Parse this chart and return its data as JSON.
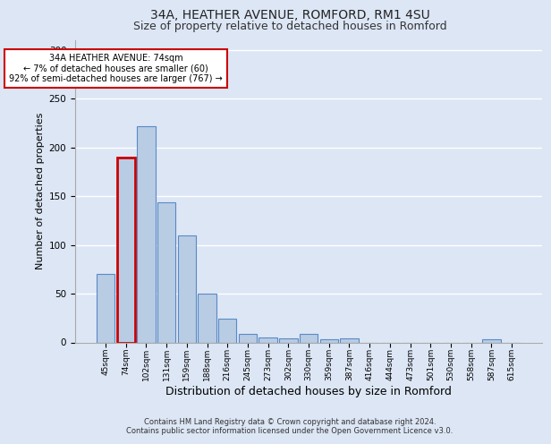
{
  "title1": "34A, HEATHER AVENUE, ROMFORD, RM1 4SU",
  "title2": "Size of property relative to detached houses in Romford",
  "xlabel": "Distribution of detached houses by size in Romford",
  "ylabel": "Number of detached properties",
  "categories": [
    "45sqm",
    "74sqm",
    "102sqm",
    "131sqm",
    "159sqm",
    "188sqm",
    "216sqm",
    "245sqm",
    "273sqm",
    "302sqm",
    "330sqm",
    "359sqm",
    "387sqm",
    "416sqm",
    "444sqm",
    "473sqm",
    "501sqm",
    "530sqm",
    "558sqm",
    "587sqm",
    "615sqm"
  ],
  "values": [
    70,
    190,
    222,
    144,
    110,
    50,
    24,
    9,
    5,
    4,
    9,
    3,
    4,
    0,
    0,
    0,
    0,
    0,
    0,
    3,
    0
  ],
  "highlight_index": 1,
  "bar_color": "#b8cce4",
  "bar_edge_color": "#5a8ac6",
  "highlight_bar_edge_color": "#cc0000",
  "ylim": [
    0,
    310
  ],
  "yticks": [
    0,
    50,
    100,
    150,
    200,
    250,
    300
  ],
  "annotation_text": "34A HEATHER AVENUE: 74sqm\n← 7% of detached houses are smaller (60)\n92% of semi-detached houses are larger (767) →",
  "annotation_box_color": "#ffffff",
  "annotation_box_edge": "#cc0000",
  "footnote": "Contains HM Land Registry data © Crown copyright and database right 2024.\nContains public sector information licensed under the Open Government Licence v3.0.",
  "bg_color": "#dce6f5",
  "grid_color": "#ffffff",
  "title1_fontsize": 10,
  "title2_fontsize": 9,
  "xlabel_fontsize": 9,
  "ylabel_fontsize": 8,
  "footnote_fontsize": 6
}
